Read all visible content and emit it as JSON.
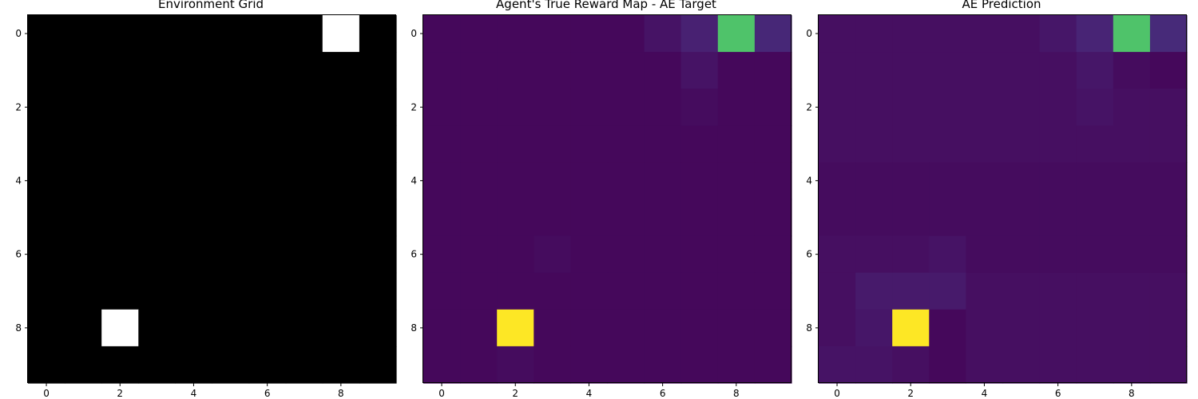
{
  "chart_data": [
    {
      "type": "heatmap",
      "title": "Environment Grid",
      "colormap": "gray",
      "vmin": 0,
      "vmax": 1,
      "x_ticks": [
        0,
        2,
        4,
        6,
        8
      ],
      "y_ticks": [
        0,
        2,
        4,
        6,
        8
      ],
      "x_tick_labels": [
        "0",
        "2",
        "4",
        "6",
        "8"
      ],
      "y_tick_labels": [
        "0",
        "2",
        "4",
        "6",
        "8"
      ],
      "grid": false,
      "values": [
        [
          0,
          0,
          0,
          0,
          0,
          0,
          0,
          0,
          1,
          0
        ],
        [
          0,
          0,
          0,
          0,
          0,
          0,
          0,
          0,
          0,
          0
        ],
        [
          0,
          0,
          0,
          0,
          0,
          0,
          0,
          0,
          0,
          0
        ],
        [
          0,
          0,
          0,
          0,
          0,
          0,
          0,
          0,
          0,
          0
        ],
        [
          0,
          0,
          0,
          0,
          0,
          0,
          0,
          0,
          0,
          0
        ],
        [
          0,
          0,
          0,
          0,
          0,
          0,
          0,
          0,
          0,
          0
        ],
        [
          0,
          0,
          0,
          0,
          0,
          0,
          0,
          0,
          0,
          0
        ],
        [
          0,
          0,
          0,
          0,
          0,
          0,
          0,
          0,
          0,
          0
        ],
        [
          0,
          0,
          1,
          0,
          0,
          0,
          0,
          0,
          0,
          0
        ],
        [
          0,
          0,
          0,
          0,
          0,
          0,
          0,
          0,
          0,
          0
        ]
      ]
    },
    {
      "type": "heatmap",
      "title": "Agent's True Reward Map - AE Target",
      "colormap": "viridis",
      "vmin": 0,
      "vmax": 1,
      "x_ticks": [
        0,
        2,
        4,
        6,
        8
      ],
      "y_ticks": [
        0,
        2,
        4,
        6,
        8
      ],
      "x_tick_labels": [
        "0",
        "2",
        "4",
        "6",
        "8"
      ],
      "y_tick_labels": [
        "0",
        "2",
        "4",
        "6",
        "8"
      ],
      "grid": false,
      "values": [
        [
          0.02,
          0.02,
          0.02,
          0.02,
          0.02,
          0.02,
          0.05,
          0.09,
          0.72,
          0.11
        ],
        [
          0.02,
          0.02,
          0.02,
          0.02,
          0.02,
          0.02,
          0.02,
          0.05,
          0.02,
          0.02
        ],
        [
          0.02,
          0.02,
          0.02,
          0.02,
          0.02,
          0.02,
          0.02,
          0.03,
          0.02,
          0.02
        ],
        [
          0.02,
          0.02,
          0.02,
          0.02,
          0.02,
          0.02,
          0.02,
          0.02,
          0.02,
          0.02
        ],
        [
          0.02,
          0.02,
          0.02,
          0.02,
          0.02,
          0.02,
          0.02,
          0.02,
          0.02,
          0.02
        ],
        [
          0.02,
          0.02,
          0.02,
          0.02,
          0.02,
          0.02,
          0.02,
          0.02,
          0.02,
          0.02
        ],
        [
          0.02,
          0.02,
          0.02,
          0.03,
          0.02,
          0.02,
          0.02,
          0.02,
          0.02,
          0.02
        ],
        [
          0.02,
          0.02,
          0.02,
          0.02,
          0.02,
          0.02,
          0.02,
          0.02,
          0.02,
          0.02
        ],
        [
          0.02,
          0.02,
          1.0,
          0.02,
          0.02,
          0.02,
          0.02,
          0.02,
          0.02,
          0.02
        ],
        [
          0.02,
          0.02,
          0.03,
          0.02,
          0.02,
          0.02,
          0.02,
          0.02,
          0.02,
          0.02
        ]
      ]
    },
    {
      "type": "heatmap",
      "title": "AE Prediction",
      "colormap": "viridis",
      "vmin": 0,
      "vmax": 1,
      "x_ticks": [
        0,
        2,
        4,
        6,
        8
      ],
      "y_ticks": [
        0,
        2,
        4,
        6,
        8
      ],
      "x_tick_labels": [
        "0",
        "2",
        "4",
        "6",
        "8"
      ],
      "y_tick_labels": [
        "0",
        "2",
        "4",
        "6",
        "8"
      ],
      "grid": false,
      "values": [
        [
          0.04,
          0.04,
          0.04,
          0.04,
          0.04,
          0.04,
          0.06,
          0.1,
          0.72,
          0.12
        ],
        [
          0.04,
          0.04,
          0.04,
          0.04,
          0.04,
          0.04,
          0.04,
          0.06,
          0.03,
          0.02
        ],
        [
          0.04,
          0.04,
          0.04,
          0.04,
          0.04,
          0.04,
          0.04,
          0.05,
          0.04,
          0.04
        ],
        [
          0.04,
          0.04,
          0.04,
          0.04,
          0.04,
          0.04,
          0.04,
          0.04,
          0.04,
          0.04
        ],
        [
          0.03,
          0.03,
          0.03,
          0.03,
          0.03,
          0.03,
          0.03,
          0.03,
          0.03,
          0.03
        ],
        [
          0.03,
          0.03,
          0.03,
          0.03,
          0.03,
          0.03,
          0.03,
          0.03,
          0.03,
          0.03
        ],
        [
          0.04,
          0.04,
          0.04,
          0.05,
          0.03,
          0.03,
          0.03,
          0.03,
          0.03,
          0.03
        ],
        [
          0.04,
          0.07,
          0.07,
          0.07,
          0.04,
          0.04,
          0.04,
          0.04,
          0.04,
          0.04
        ],
        [
          0.04,
          0.06,
          1.0,
          0.02,
          0.04,
          0.04,
          0.04,
          0.04,
          0.04,
          0.04
        ],
        [
          0.05,
          0.05,
          0.04,
          0.02,
          0.04,
          0.04,
          0.04,
          0.04,
          0.04,
          0.04
        ]
      ]
    }
  ]
}
